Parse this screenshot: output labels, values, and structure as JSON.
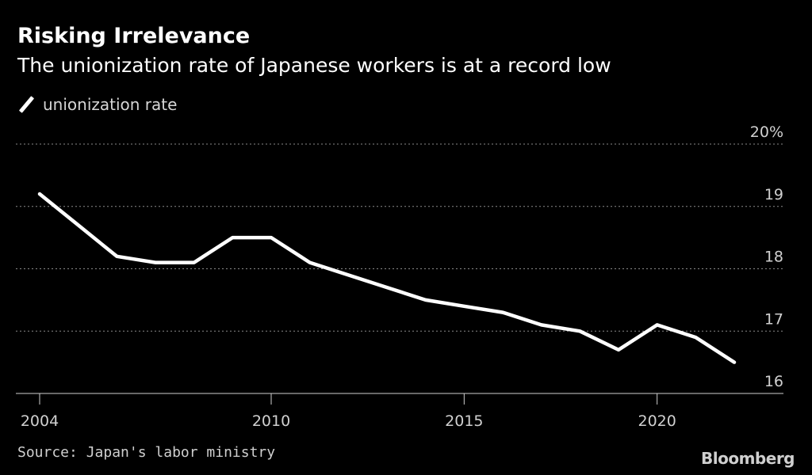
{
  "header": {
    "title": "Risking Irrelevance",
    "subtitle": "The unionization rate of Japanese workers is at a record low"
  },
  "legend": {
    "label": "unionization rate"
  },
  "footer": {
    "source": "Source: Japan's labor ministry",
    "brand": "Bloomberg"
  },
  "colors": {
    "background": "#000000",
    "line": "#ffffff",
    "grid": "#8a8a8a",
    "text": "#d0d0d0"
  },
  "chart_data": {
    "type": "line",
    "title": "Risking Irrelevance",
    "subtitle": "The unionization rate of Japanese workers is at a record low",
    "xlabel": "",
    "ylabel": "",
    "x": [
      2004,
      2005,
      2006,
      2007,
      2008,
      2009,
      2010,
      2011,
      2012,
      2013,
      2014,
      2015,
      2016,
      2017,
      2018,
      2019,
      2020,
      2021,
      2022
    ],
    "series": [
      {
        "name": "unionization rate",
        "values": [
          19.2,
          18.7,
          18.2,
          18.1,
          18.1,
          18.5,
          18.5,
          18.1,
          17.9,
          17.7,
          17.5,
          17.4,
          17.3,
          17.1,
          17.0,
          16.7,
          17.1,
          16.9,
          16.5
        ]
      }
    ],
    "xlim": [
      2004,
      2022
    ],
    "ylim": [
      16,
      20
    ],
    "x_ticks": [
      2004,
      2010,
      2015,
      2020
    ],
    "x_tick_labels": [
      "2004",
      "2010",
      "2015",
      "2020"
    ],
    "y_ticks": [
      16,
      17,
      18,
      19,
      20
    ],
    "y_tick_labels": [
      "16",
      "17",
      "18",
      "19",
      "20%"
    ],
    "grid": true,
    "y_axis_side": "right",
    "legend_position": "top-left"
  }
}
